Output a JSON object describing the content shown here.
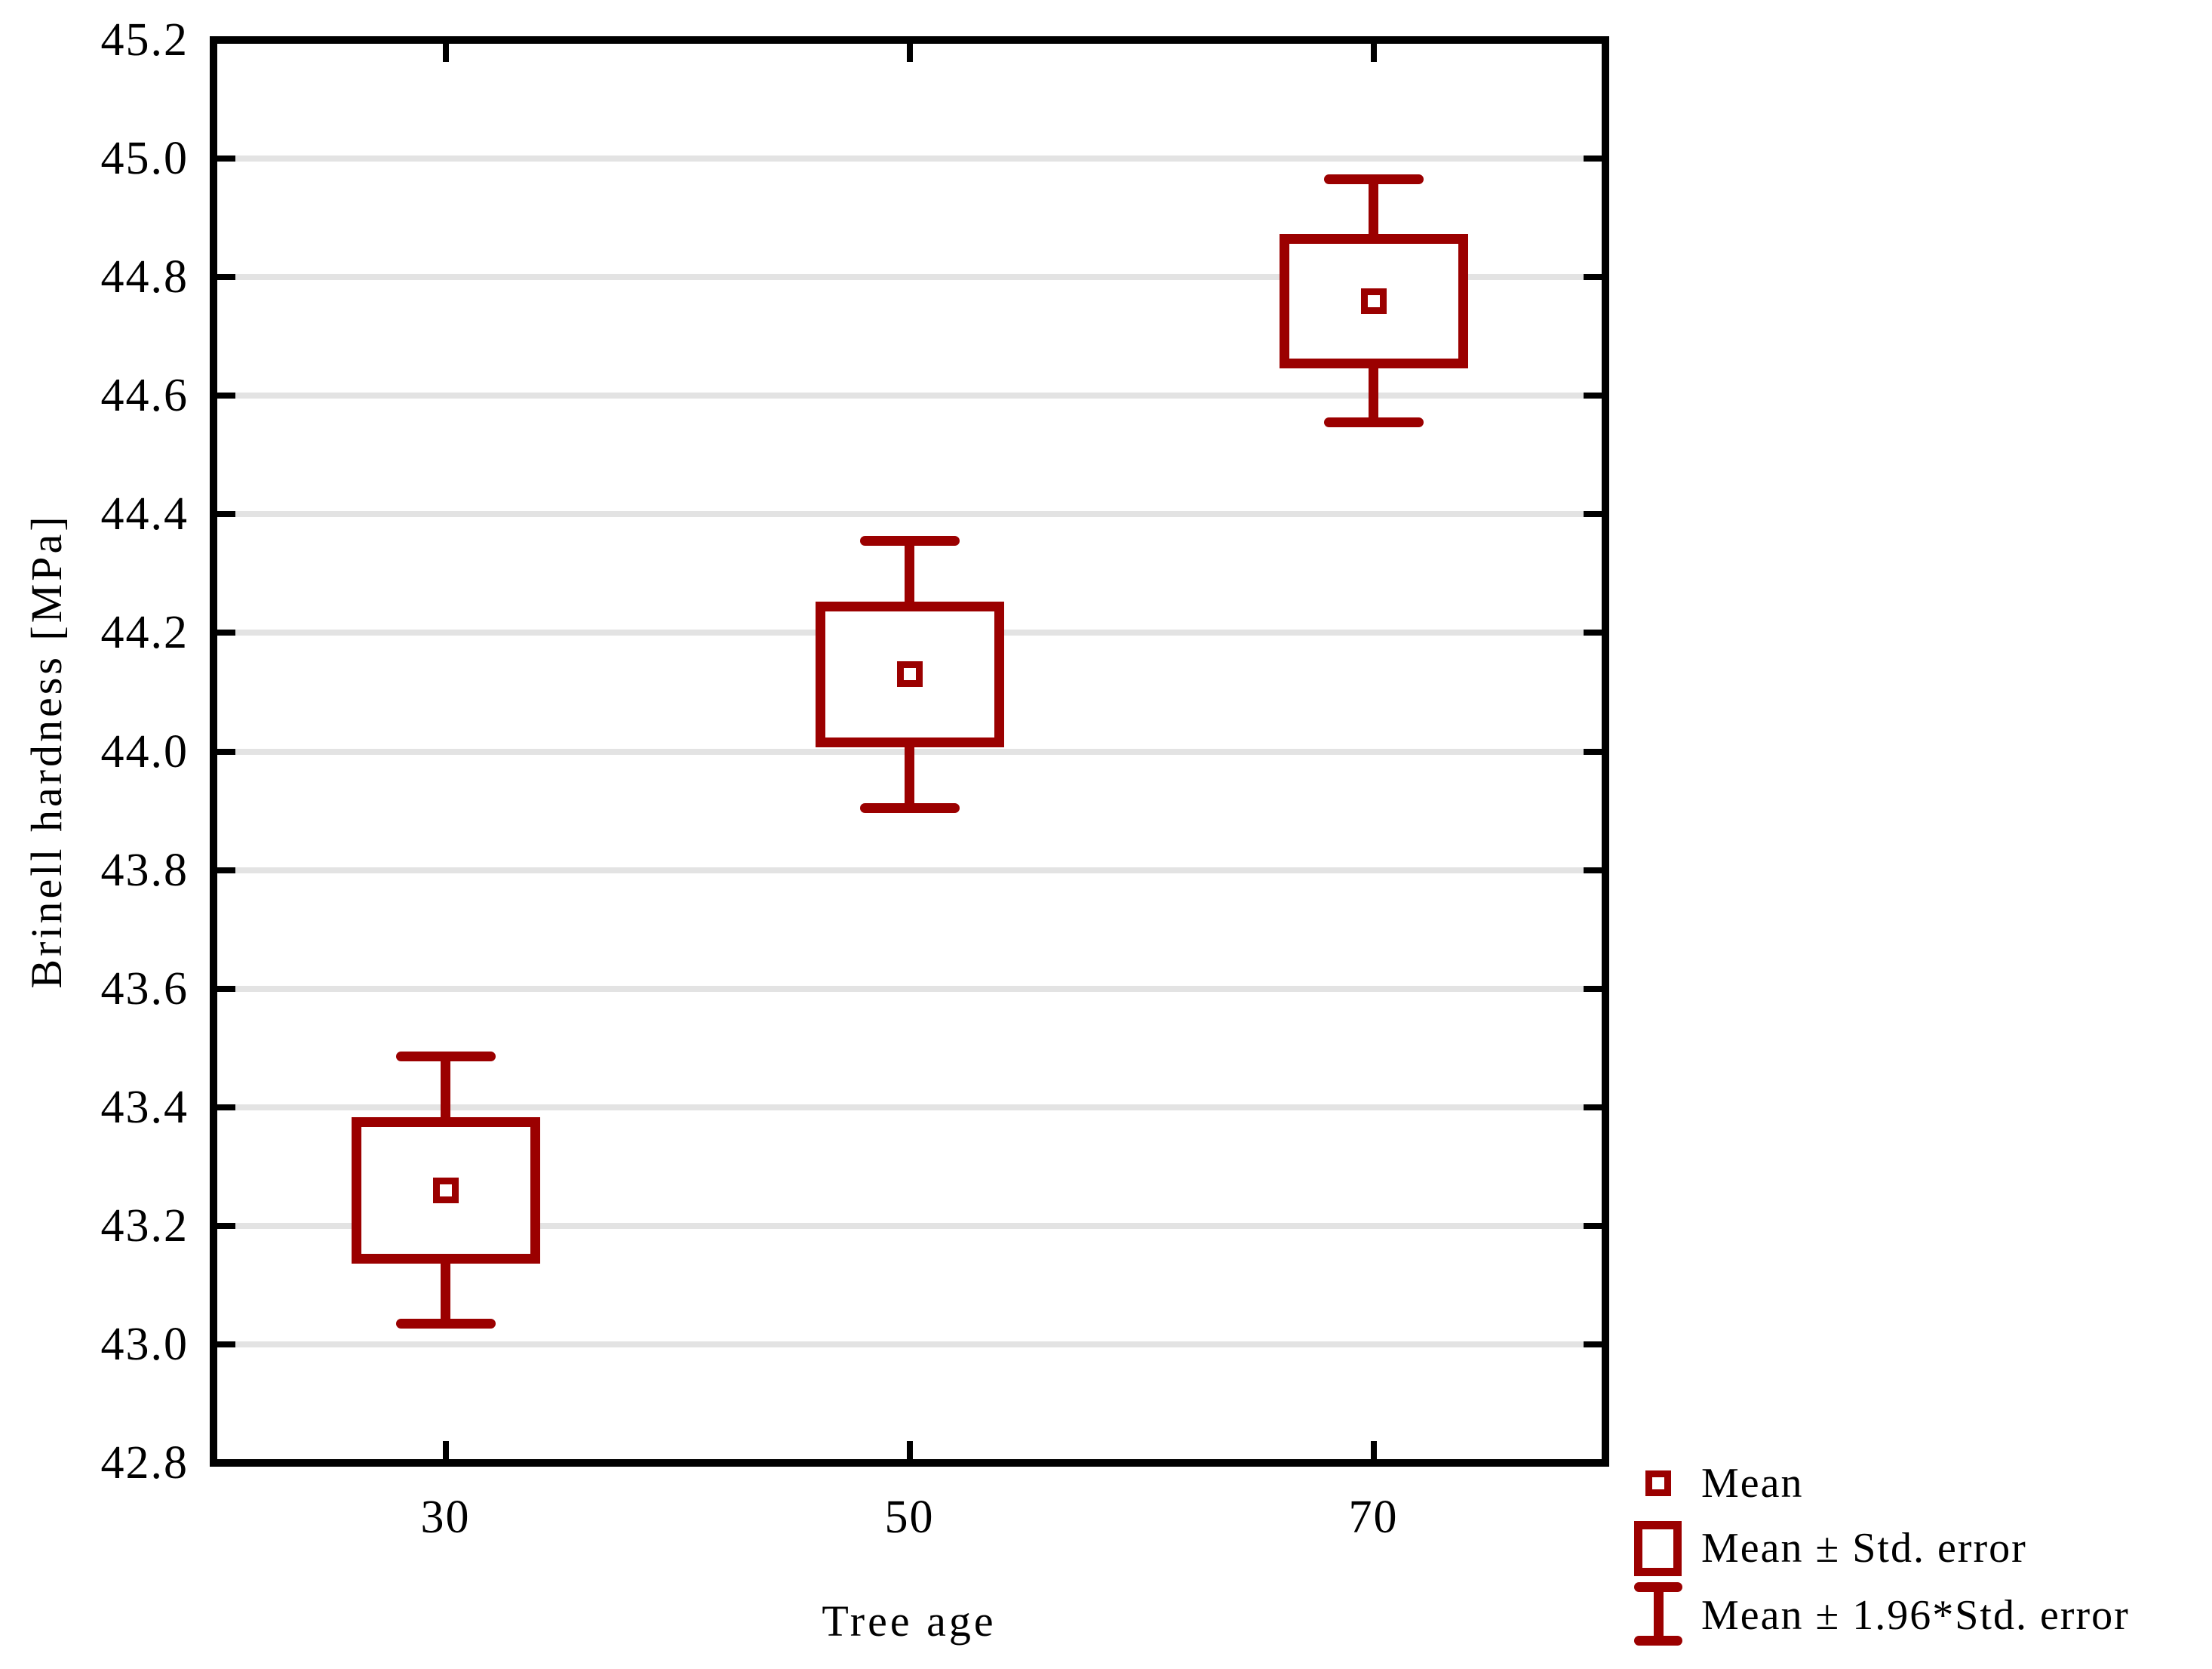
{
  "chart_data": {
    "type": "box",
    "subtype": "mean-std-error-boxplot",
    "title": "",
    "xlabel": "Tree age",
    "ylabel": "Brinell hardness [MPa]",
    "categories": [
      "30",
      "50",
      "70"
    ],
    "y_axis": {
      "min": 42.8,
      "max": 45.2,
      "step": 0.2,
      "tick_labels": [
        "42.8",
        "43.0",
        "43.2",
        "43.4",
        "43.6",
        "43.8",
        "44.0",
        "44.2",
        "44.4",
        "44.6",
        "44.8",
        "45.0",
        "45.2"
      ]
    },
    "grid": "horizontal-light-gray",
    "series": [
      {
        "category": "30",
        "mean": 43.26,
        "std_error": 0.115,
        "box_low": 43.145,
        "box_high": 43.375,
        "whisker_low": 43.035,
        "whisker_high": 43.485
      },
      {
        "category": "50",
        "mean": 44.13,
        "std_error": 0.115,
        "box_low": 44.015,
        "box_high": 44.245,
        "whisker_low": 43.905,
        "whisker_high": 44.355
      },
      {
        "category": "70",
        "mean": 44.76,
        "std_error": 0.105,
        "box_low": 44.655,
        "box_high": 44.865,
        "whisker_low": 44.555,
        "whisker_high": 44.965
      }
    ],
    "legend": {
      "position": "bottom-right-outside",
      "items": [
        {
          "marker": "mean-square",
          "label": "Mean"
        },
        {
          "marker": "box",
          "label": "Mean ± Std. error"
        },
        {
          "marker": "whisker",
          "label": "Mean ± 1.96*Std. error"
        }
      ]
    },
    "colors": {
      "series": "#9B0000",
      "grid": "#E3E3E3",
      "axis": "#000000",
      "background": "#FFFFFF"
    }
  }
}
